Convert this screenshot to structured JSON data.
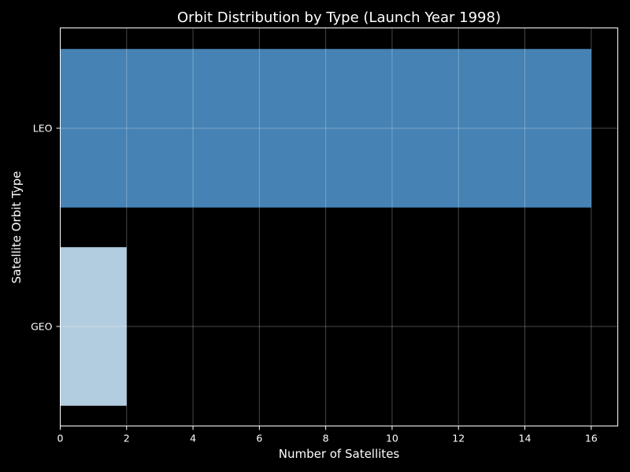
{
  "chart_data": {
    "type": "bar",
    "orientation": "horizontal",
    "title": "Orbit Distribution by Type (Launch Year 1998)",
    "xlabel": "Number of Satellites",
    "ylabel": "Satellite Orbit Type",
    "categories": [
      "GEO",
      "LEO"
    ],
    "values": [
      2,
      16
    ],
    "colors": [
      "#b3cde0",
      "#4682b4"
    ],
    "xlim": [
      0,
      16.8
    ],
    "xticks": [
      0,
      2,
      4,
      6,
      8,
      10,
      12,
      14,
      16
    ],
    "grid": true,
    "background": "#000000",
    "foreground": "#ffffff"
  }
}
